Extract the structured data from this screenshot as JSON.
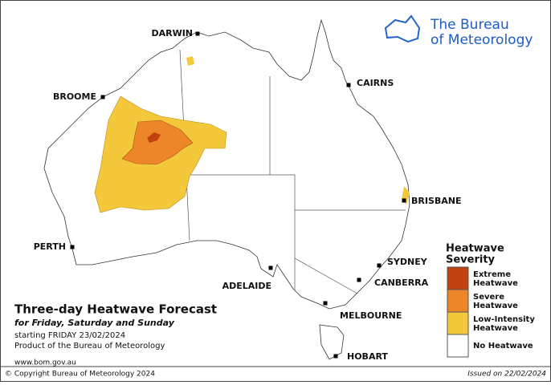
{
  "logo": {
    "line1": "The Bureau",
    "line2": "of Meteorology"
  },
  "cities": [
    {
      "label": "DARWIN"
    },
    {
      "label": "CAIRNS"
    },
    {
      "label": "BROOME"
    },
    {
      "label": "BRISBANE"
    },
    {
      "label": "PERTH"
    },
    {
      "label": "SYDNEY"
    },
    {
      "label": "ADELAIDE"
    },
    {
      "label": "CANBERRA"
    },
    {
      "label": "MELBOURNE"
    },
    {
      "label": "HOBART"
    }
  ],
  "title": "Three-day Heatwave Forecast",
  "subtitle": "for Friday, Saturday and Sunday",
  "starting": "starting FRIDAY 23/02/2024",
  "product": "Product of the Bureau of Meteorology",
  "website": "www.bom.gov.au",
  "copyright": "© Copyright Bureau of Meteorology 2024",
  "issued": "Issued on 22/02/2024",
  "legend": {
    "title_line1": "Heatwave",
    "title_line2": "Severity",
    "items": [
      {
        "line1": "Extreme",
        "line2": "Heatwave",
        "color": "#c0420e"
      },
      {
        "line1": "Severe",
        "line2": "Heatwave",
        "color": "#ec8628"
      },
      {
        "line1": "Low-Intensity",
        "line2": "Heatwave",
        "color": "#f3c83a"
      },
      {
        "line1": "No Heatwave",
        "color": "#ffffff"
      }
    ]
  }
}
